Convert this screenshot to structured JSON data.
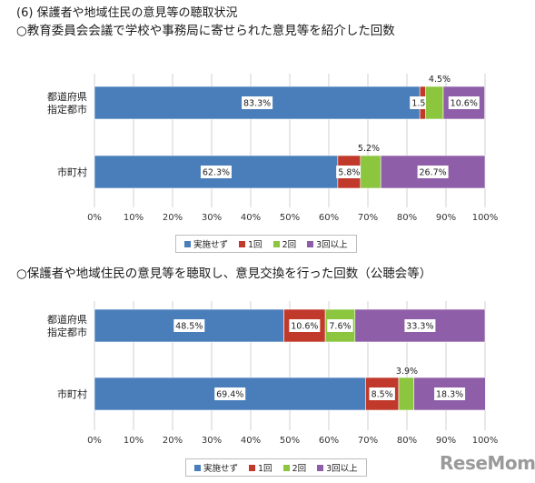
{
  "section_heading": "(6) 保護者や地域住民の意見等の聴取状況",
  "watermark": "ReseMom",
  "colors": {
    "series": [
      "#4a7ebb",
      "#c0392b",
      "#8cc63f",
      "#8e5ea8"
    ],
    "grid": "#d0d0d0",
    "bar_stroke": "#ffffff"
  },
  "chart_data": [
    {
      "type": "bar",
      "orientation": "horizontal",
      "stacked": true,
      "title": "○教育委員会会議で学校や事務局に寄せられた意見等を紹介した回数",
      "categories": [
        "都道府県\n指定都市",
        "市町村"
      ],
      "series": [
        {
          "name": "実施せず",
          "values": [
            83.3,
            62.3
          ],
          "labels": [
            "83.3%",
            "62.3%"
          ]
        },
        {
          "name": "1回",
          "values": [
            1.5,
            5.8
          ],
          "labels": [
            "1.5%",
            "5.8%"
          ]
        },
        {
          "name": "2回",
          "values": [
            4.5,
            5.2
          ],
          "labels": [
            "4.5%",
            "5.2%"
          ]
        },
        {
          "name": "3回以上",
          "values": [
            10.6,
            26.7
          ],
          "labels": [
            "10.6%",
            "26.7%"
          ]
        }
      ],
      "xlim": [
        0,
        100
      ],
      "xticks": [
        "0%",
        "10%",
        "20%",
        "30%",
        "40%",
        "50%",
        "60%",
        "70%",
        "80%",
        "90%",
        "100%"
      ],
      "grid": true,
      "legend": "bottom"
    },
    {
      "type": "bar",
      "orientation": "horizontal",
      "stacked": true,
      "title": "○保護者や地域住民の意見等を聴取し、意見交換を行った回数（公聴会等）",
      "categories": [
        "都道府県\n指定都市",
        "市町村"
      ],
      "series": [
        {
          "name": "実施せず",
          "values": [
            48.5,
            69.4
          ],
          "labels": [
            "48.5%",
            "69.4%"
          ]
        },
        {
          "name": "1回",
          "values": [
            10.6,
            8.5
          ],
          "labels": [
            "10.6%",
            "8.5%"
          ]
        },
        {
          "name": "2回",
          "values": [
            7.6,
            3.9
          ],
          "labels": [
            "7.6%",
            "3.9%"
          ]
        },
        {
          "name": "3回以上",
          "values": [
            33.3,
            18.3
          ],
          "labels": [
            "33.3%",
            "18.3%"
          ]
        }
      ],
      "xlim": [
        0,
        100
      ],
      "xticks": [
        "0%",
        "10%",
        "20%",
        "30%",
        "40%",
        "50%",
        "60%",
        "70%",
        "80%",
        "90%",
        "100%"
      ],
      "grid": true,
      "legend": "bottom"
    }
  ]
}
